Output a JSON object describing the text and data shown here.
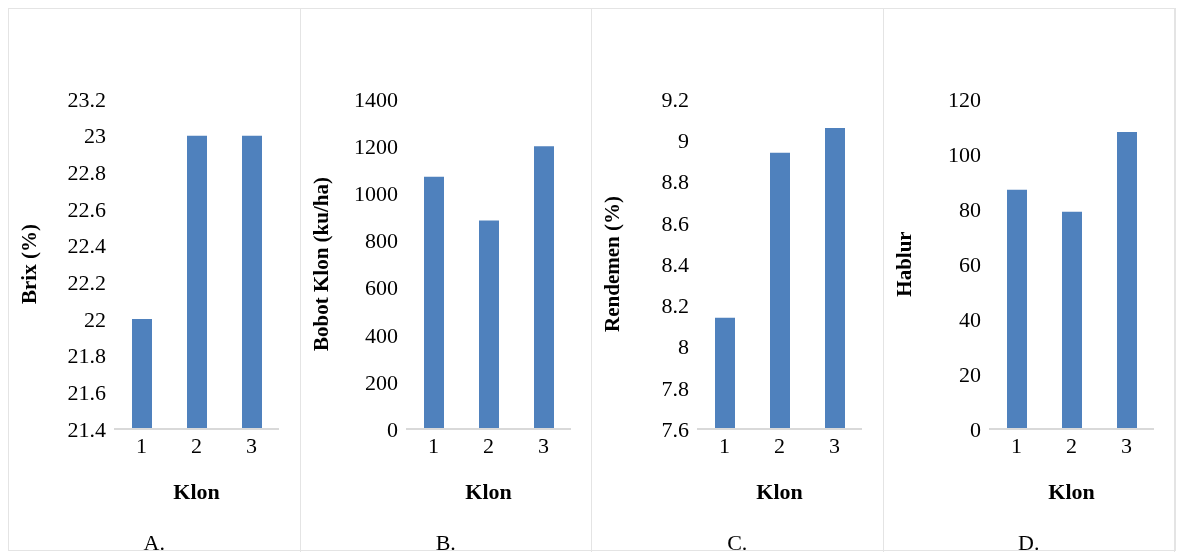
{
  "chart_data": [
    {
      "type": "bar",
      "categories": [
        "1",
        "2",
        "3"
      ],
      "values": [
        22.0,
        23.0,
        23.0
      ],
      "color": "#4f81bd",
      "xlabel": "Klon",
      "ylabel": "Brix (%)",
      "ylim": [
        21.4,
        23.2
      ],
      "yticks": [
        21.4,
        21.6,
        21.8,
        22,
        22.2,
        22.4,
        22.6,
        22.8,
        23,
        23.2
      ],
      "grid": false,
      "annotations": [
        "A."
      ]
    },
    {
      "type": "bar",
      "categories": [
        "1",
        "2",
        "3"
      ],
      "values": [
        1070,
        885,
        1200
      ],
      "color": "#4f81bd",
      "xlabel": "Klon",
      "ylabel": "Bobot Klon (ku/ha)",
      "ylim": [
        0,
        1400
      ],
      "yticks": [
        0,
        200,
        400,
        600,
        800,
        1000,
        1200,
        1400
      ],
      "grid": false,
      "annotations": [
        "B."
      ]
    },
    {
      "type": "bar",
      "categories": [
        "1",
        "2",
        "3"
      ],
      "values": [
        8.14,
        8.94,
        9.06
      ],
      "color": "#4f81bd",
      "xlabel": "Klon",
      "ylabel": "Rendemen (%)",
      "ylim": [
        7.6,
        9.2
      ],
      "yticks": [
        7.6,
        7.8,
        8,
        8.2,
        8.4,
        8.6,
        8.8,
        9,
        9.2
      ],
      "grid": false,
      "annotations": [
        "C."
      ]
    },
    {
      "type": "bar",
      "categories": [
        "1",
        "2",
        "3"
      ],
      "values": [
        87,
        79,
        108
      ],
      "color": "#4f81bd",
      "xlabel": "Klon",
      "ylabel": "Hablur",
      "ylim": [
        0,
        120
      ],
      "yticks": [
        0,
        20,
        40,
        60,
        80,
        100,
        120
      ],
      "grid": false,
      "annotations": [
        "D."
      ]
    }
  ]
}
